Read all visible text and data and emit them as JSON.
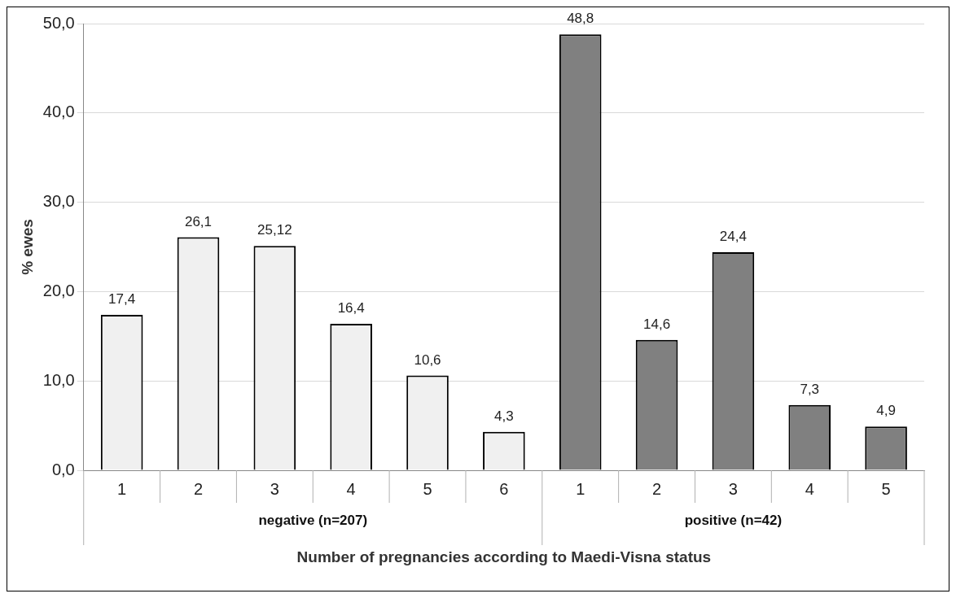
{
  "chart_data": {
    "type": "bar",
    "ylabel": "% ewes",
    "xlabel": "Number of pregnancies according to Maedi-Visna status",
    "categories": [
      "1",
      "2",
      "3",
      "4",
      "5",
      "6",
      "1",
      "2",
      "3",
      "4",
      "5"
    ],
    "values": [
      17.4,
      26.1,
      25.12,
      16.4,
      10.6,
      4.3,
      48.8,
      14.6,
      24.4,
      7.3,
      4.9
    ],
    "value_labels": [
      "17,4",
      "26,1",
      "25,12",
      "16,4",
      "10,6",
      "4,3",
      "48,8",
      "14,6",
      "24,4",
      "7,3",
      "4,9"
    ],
    "colors": [
      "#f0f0f0",
      "#f0f0f0",
      "#f0f0f0",
      "#f0f0f0",
      "#f0f0f0",
      "#f0f0f0",
      "#808080",
      "#808080",
      "#808080",
      "#808080",
      "#808080"
    ],
    "annotations": [
      "negative (n=207)",
      "positive (n=42)"
    ],
    "ylim": [
      0,
      50
    ],
    "yticks": [
      {
        "value": 0,
        "label": "0,0"
      },
      {
        "value": 10,
        "label": "10,0"
      },
      {
        "value": 20,
        "label": "20,0"
      },
      {
        "value": 30,
        "label": "30,0"
      },
      {
        "value": 40,
        "label": "40,0"
      },
      {
        "value": 50,
        "label": "50,0"
      }
    ],
    "grid": "y",
    "legend": false
  }
}
